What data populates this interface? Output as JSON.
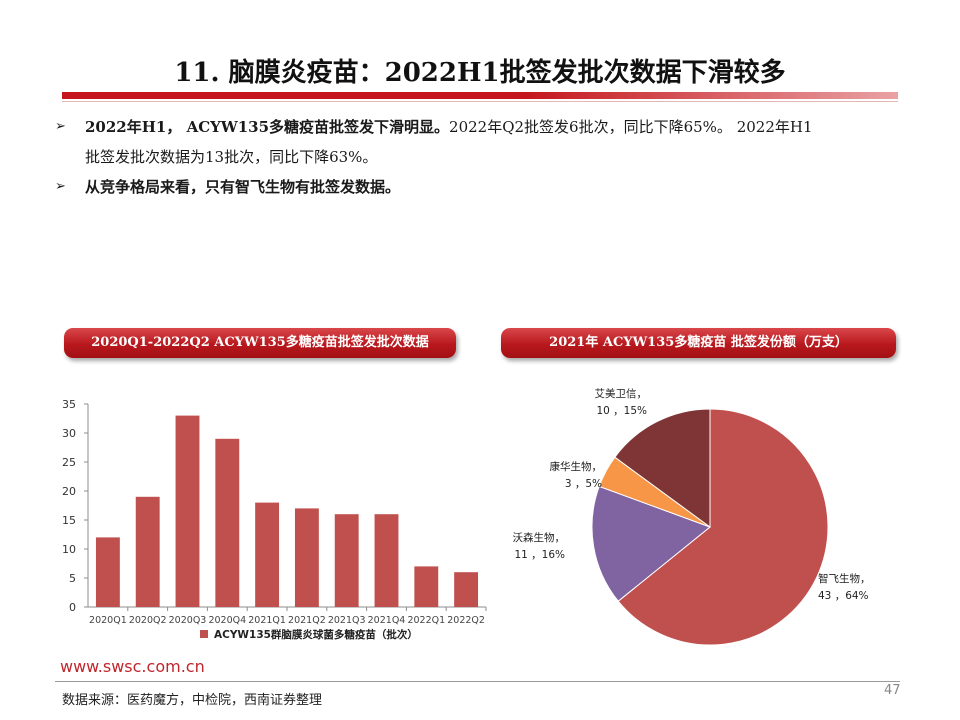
{
  "page": {
    "title": "11. 脑膜炎疫苗：2022H1批签发批次数据下滑较多",
    "bullets": {
      "b1_bold": "2022年H1， ACYW135多糖疫苗批签发下滑明显。",
      "b1_rest": "2022年Q2批签发6批次，同比下降65%。 2022年H1",
      "b1_cont": "批签发批次数据为13批次，同比下降63%。",
      "b2_bold": "从竞争格局来看，只有智飞生物有批签发数据。"
    },
    "bullet_marker": "➢",
    "footer_url": "www.swsc.com.cn",
    "footer_source": "数据来源：医药魔方，中检院，西南证券整理",
    "page_number": "47",
    "colors": {
      "accent_red": "#c4161c"
    }
  },
  "chart_data": [
    {
      "type": "bar",
      "title": "2020Q1-2022Q2 ACYW135多糖疫苗批签发批次数据",
      "categories": [
        "2020Q1",
        "2020Q2",
        "2020Q3",
        "2020Q4",
        "2021Q1",
        "2021Q2",
        "2021Q3",
        "2021Q4",
        "2022Q1",
        "2022Q2"
      ],
      "series": [
        {
          "name": "ACYW135群脑膜炎球菌多糖疫苗（批次）",
          "values": [
            12,
            19,
            33,
            29,
            18,
            17,
            16,
            16,
            7,
            6
          ],
          "color": "#c0504d"
        }
      ],
      "ylim": [
        0,
        35
      ],
      "yticks": [
        0,
        5,
        10,
        15,
        20,
        25,
        30,
        35
      ],
      "xlabel": "",
      "ylabel": "",
      "legend": "bottom",
      "grid": false
    },
    {
      "type": "pie",
      "title": "2021年 ACYW135多糖疫苗 批签发份额（万支）",
      "slices": [
        {
          "name": "智飞生物",
          "value": 43,
          "percent": "64%",
          "label": "智飞生物，\n43 ，64%",
          "color": "#c0504d"
        },
        {
          "name": "沃森生物",
          "value": 11,
          "percent": "16%",
          "label": "沃森生物，\n11 ，16%",
          "color": "#8064a2"
        },
        {
          "name": "康华生物",
          "value": 3,
          "percent": "5%",
          "label": "康华生物，\n3 ，5%",
          "color": "#f79646"
        },
        {
          "name": "艾美卫信",
          "value": 10,
          "percent": "15%",
          "label": "艾美卫信，\n10 ，15%",
          "color": "#7f3535"
        }
      ]
    }
  ]
}
